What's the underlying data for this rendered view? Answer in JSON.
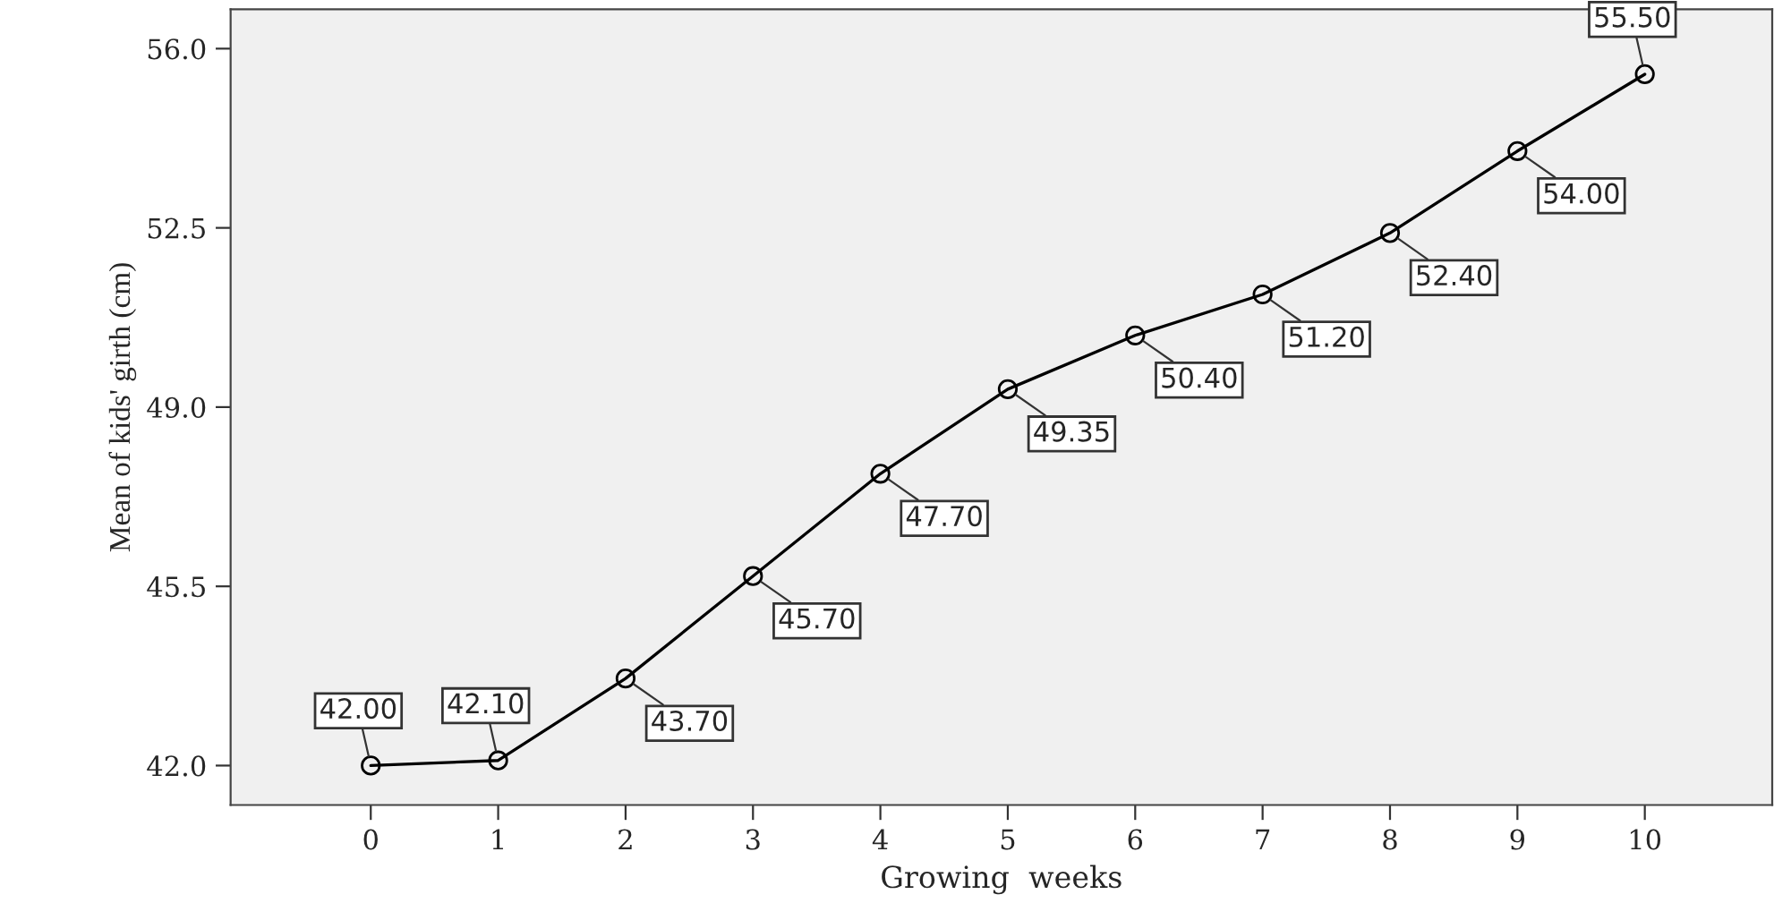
{
  "chart_data": {
    "type": "line",
    "xlabel": "Growing  weeks",
    "ylabel": "Mean of kids' girth (cm)",
    "x": [
      0,
      1,
      2,
      3,
      4,
      5,
      6,
      7,
      8,
      9,
      10
    ],
    "series": [
      {
        "color": "#000000",
        "values": [
          42.0,
          42.1,
          43.7,
          45.7,
          47.7,
          49.35,
          50.4,
          51.2,
          52.4,
          54.0,
          55.5
        ],
        "value_labels": [
          "42.00",
          "42.10",
          "43.70",
          "45.70",
          "47.70",
          "49.35",
          "50.40",
          "51.20",
          "52.40",
          "54.00",
          "55.50"
        ]
      }
    ],
    "xlim": [
      -1.1,
      11
    ],
    "xticks": [
      0,
      1,
      2,
      3,
      4,
      5,
      6,
      7,
      8,
      9,
      10
    ],
    "ylim": [
      41.23,
      56.77
    ],
    "yticks": [
      {
        "value": 42,
        "label": "42.0"
      },
      {
        "value": 45.5,
        "label": "45.5"
      },
      {
        "value": 49,
        "label": "49.0"
      },
      {
        "value": 52.5,
        "label": "52.5"
      },
      {
        "value": 56,
        "label": "56.0"
      }
    ],
    "marker": "circle",
    "line_style": "solid",
    "grid": false,
    "legend": false
  }
}
